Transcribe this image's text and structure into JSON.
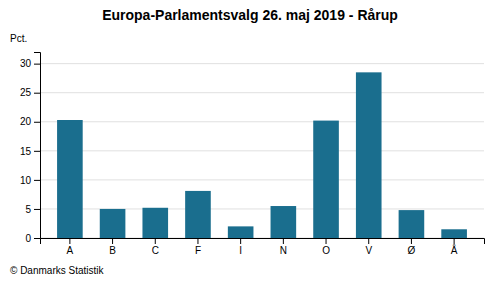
{
  "chart_data": {
    "type": "bar",
    "title": "Europa-Parlamentsvalg 26. maj 2019 - Rårup",
    "categories": [
      "A",
      "B",
      "C",
      "F",
      "I",
      "N",
      "O",
      "V",
      "Ø",
      "Å"
    ],
    "values": [
      20.3,
      5.0,
      5.2,
      8.1,
      2.0,
      5.5,
      20.2,
      28.5,
      4.8,
      1.5
    ],
    "color": "#1a6e8e",
    "ylim": [
      0,
      32
    ],
    "yticks": [
      0,
      5,
      10,
      15,
      20,
      25,
      30
    ],
    "grid": true,
    "y_label": "Pct.",
    "footer": "© Danmarks Statistik"
  }
}
